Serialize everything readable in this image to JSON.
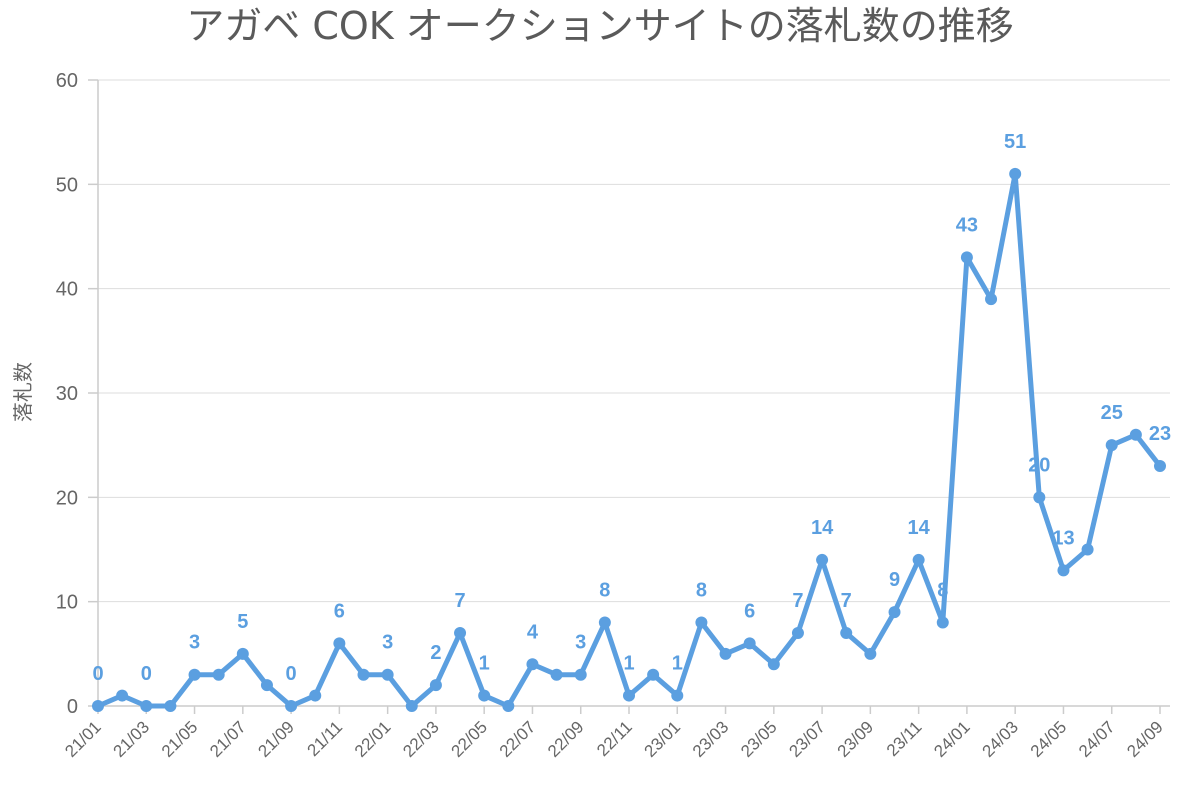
{
  "chart_data": {
    "type": "line",
    "title": "アガベ COK オークションサイトの落札数の推移",
    "xlabel": "",
    "ylabel": "落札数",
    "ylim": [
      0,
      60
    ],
    "yticks": [
      0,
      10,
      20,
      30,
      40,
      50,
      60
    ],
    "grid": true,
    "color": "#5b9fe0",
    "x": [
      "21/01",
      "21/02",
      "21/03",
      "21/04",
      "21/05",
      "21/06",
      "21/07",
      "21/08",
      "21/09",
      "21/10",
      "21/11",
      "21/12",
      "22/01",
      "22/02",
      "22/03",
      "22/04",
      "22/05",
      "22/06",
      "22/07",
      "22/08",
      "22/09",
      "22/10",
      "22/11",
      "22/12",
      "23/01",
      "23/02",
      "23/03",
      "23/04",
      "23/05",
      "23/06",
      "23/07",
      "23/08",
      "23/09",
      "23/10",
      "23/11",
      "23/12",
      "24/01",
      "24/02",
      "24/03",
      "24/04",
      "24/05",
      "24/06",
      "24/07",
      "24/08",
      "24/09"
    ],
    "xtick_labels": [
      "21/01",
      "21/03",
      "21/05",
      "21/07",
      "21/09",
      "21/11",
      "22/01",
      "22/03",
      "22/05",
      "22/07",
      "22/09",
      "22/11",
      "23/01",
      "23/03",
      "23/05",
      "23/07",
      "23/09",
      "23/11",
      "24/01",
      "24/03",
      "24/05",
      "24/07",
      "24/09"
    ],
    "series": [
      {
        "values": [
          0,
          1,
          0,
          0,
          3,
          3,
          5,
          2,
          0,
          1,
          6,
          3,
          3,
          0,
          2,
          7,
          1,
          0,
          4,
          3,
          3,
          8,
          1,
          3,
          1,
          8,
          5,
          6,
          4,
          7,
          14,
          7,
          5,
          9,
          14,
          8,
          43,
          39,
          51,
          20,
          13,
          15,
          25,
          26,
          23
        ]
      }
    ],
    "data_labels": [
      {
        "x": "21/01",
        "text": "0"
      },
      {
        "x": "21/03",
        "text": "0"
      },
      {
        "x": "21/05",
        "text": "3"
      },
      {
        "x": "21/07",
        "text": "5"
      },
      {
        "x": "21/09",
        "text": "0"
      },
      {
        "x": "21/11",
        "text": "6"
      },
      {
        "x": "22/01",
        "text": "3"
      },
      {
        "x": "22/03",
        "text": "2"
      },
      {
        "x": "22/04",
        "text": "7"
      },
      {
        "x": "22/05",
        "text": "1"
      },
      {
        "x": "22/07",
        "text": "4"
      },
      {
        "x": "22/09",
        "text": "3"
      },
      {
        "x": "22/10",
        "text": "8"
      },
      {
        "x": "22/11",
        "text": "1"
      },
      {
        "x": "23/01",
        "text": "1"
      },
      {
        "x": "23/02",
        "text": "8"
      },
      {
        "x": "23/04",
        "text": "6"
      },
      {
        "x": "23/06",
        "text": "7"
      },
      {
        "x": "23/07",
        "text": "14"
      },
      {
        "x": "23/08",
        "text": "7"
      },
      {
        "x": "23/10",
        "text": "9"
      },
      {
        "x": "23/11",
        "text": "14"
      },
      {
        "x": "23/12",
        "text": "8"
      },
      {
        "x": "24/01",
        "text": "43"
      },
      {
        "x": "24/03",
        "text": "51"
      },
      {
        "x": "24/04",
        "text": "20"
      },
      {
        "x": "24/05",
        "text": "13"
      },
      {
        "x": "24/07",
        "text": "25"
      },
      {
        "x": "24/09",
        "text": "23"
      }
    ]
  }
}
